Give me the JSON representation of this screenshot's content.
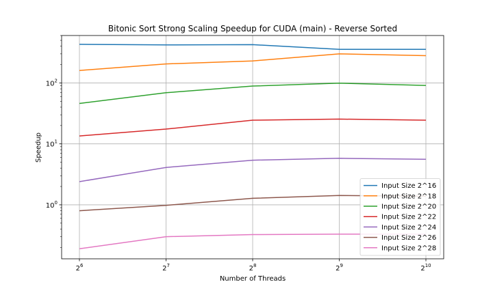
{
  "chart_data": {
    "type": "line",
    "title": "Bitonic Sort Strong Scaling Speedup for CUDA (main) - Reverse Sorted",
    "xlabel": "Number of Threads",
    "ylabel": "Speedup",
    "x": [
      64,
      128,
      256,
      512,
      1024
    ],
    "x_tick_bases": [
      "2",
      "2",
      "2",
      "2",
      "2"
    ],
    "x_tick_exponents": [
      "6",
      "7",
      "8",
      "9",
      "10"
    ],
    "x_scale": "log2",
    "y_scale": "log10",
    "ylim": [
      0.13,
      600
    ],
    "y_ticks": [
      1,
      10,
      100
    ],
    "y_tick_bases": [
      "10",
      "10",
      "10"
    ],
    "y_tick_exponents": [
      "0",
      "1",
      "2"
    ],
    "grid": true,
    "legend_position": "lower-right",
    "series": [
      {
        "name": "Input Size 2^16",
        "color": "#1f77b4",
        "values": [
          430,
          420,
          425,
          355,
          355
        ]
      },
      {
        "name": "Input Size 2^18",
        "color": "#ff7f0e",
        "values": [
          160,
          205,
          230,
          300,
          280
        ]
      },
      {
        "name": "Input Size 2^20",
        "color": "#2ca02c",
        "values": [
          46,
          69,
          89,
          99,
          91
        ]
      },
      {
        "name": "Input Size 2^22",
        "color": "#d62728",
        "values": [
          13.5,
          17.5,
          24.5,
          25.5,
          24.5
        ]
      },
      {
        "name": "Input Size 2^24",
        "color": "#9467bd",
        "values": [
          2.4,
          4.1,
          5.4,
          5.8,
          5.6
        ]
      },
      {
        "name": "Input Size 2^26",
        "color": "#8c564b",
        "values": [
          0.8,
          0.98,
          1.28,
          1.42,
          1.38
        ]
      },
      {
        "name": "Input Size 2^28",
        "color": "#e377c2",
        "values": [
          0.19,
          0.3,
          0.325,
          0.33,
          0.33
        ]
      }
    ]
  }
}
